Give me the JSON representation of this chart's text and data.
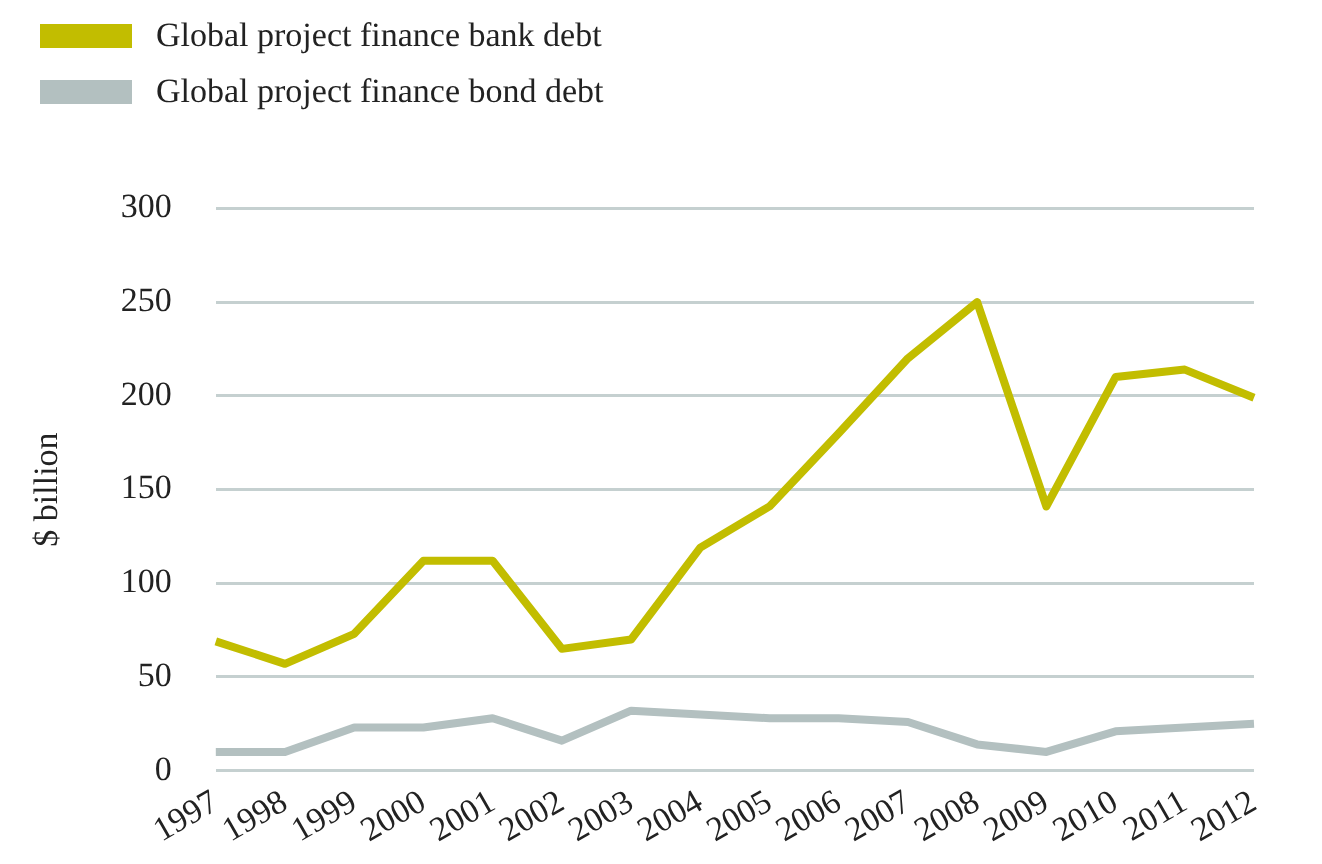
{
  "chart_data": {
    "type": "line",
    "ylabel": "$ billion",
    "categories": [
      "1997",
      "1998",
      "1999",
      "2000",
      "2001",
      "2002",
      "2003",
      "2004",
      "2005",
      "2006",
      "2007",
      "2008",
      "2009",
      "2010",
      "2011",
      "2012"
    ],
    "series": [
      {
        "name": "Global project finance bank debt",
        "color": "#c2bd00",
        "values": [
          69,
          57,
          73,
          112,
          112,
          65,
          70,
          119,
          141,
          180,
          220,
          250,
          141,
          210,
          214,
          199
        ]
      },
      {
        "name": "Global project finance bond debt",
        "color": "#b3c0c0",
        "values": [
          10,
          10,
          23,
          23,
          28,
          16,
          32,
          30,
          28,
          28,
          26,
          14,
          10,
          21,
          23,
          25
        ]
      }
    ],
    "ylim": [
      0,
      300
    ],
    "yticks": [
      0,
      50,
      100,
      150,
      200,
      250,
      300
    ],
    "grid": "y",
    "legend": "top left",
    "marker": "none"
  }
}
